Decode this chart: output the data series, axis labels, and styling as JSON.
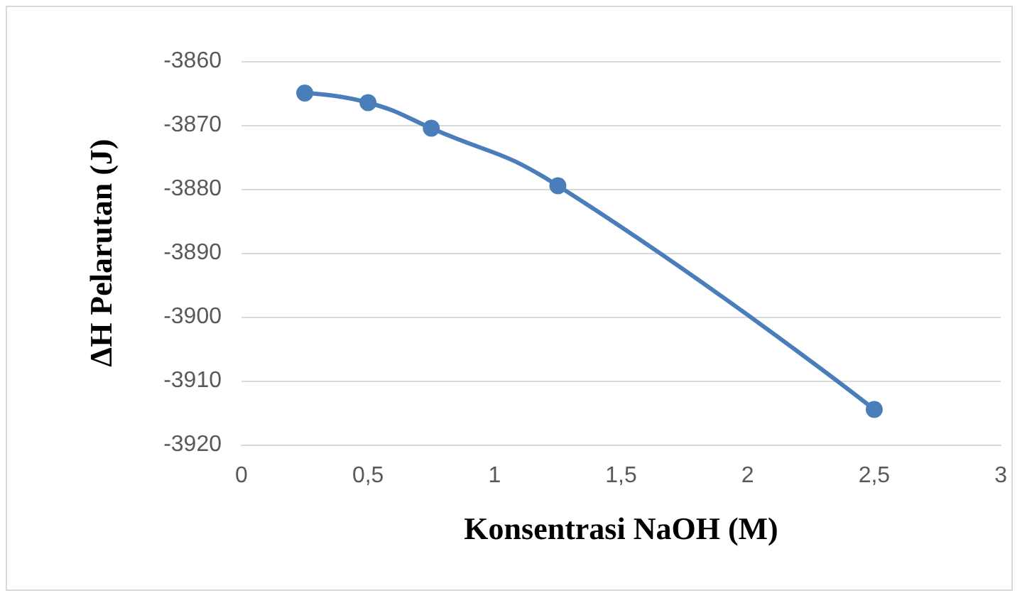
{
  "chart_data": {
    "type": "line",
    "xlabel": "Konsentrasi NaOH (M)",
    "ylabel": "ΔH Pelarutan (J)",
    "x": [
      0.25,
      0.5,
      0.75,
      1.25,
      2.5
    ],
    "series": [
      {
        "color": "#4a7ebb",
        "values": [
          -3865,
          -3866.5,
          -3870.5,
          -3879.5,
          -3914.5
        ]
      }
    ],
    "xlim": [
      0,
      3
    ],
    "xticks": [
      0,
      {
        "value": 0.5,
        "label": "0,5"
      },
      1,
      {
        "value": 1.5,
        "label": "1,5"
      },
      2,
      {
        "value": 2.5,
        "label": "2,5"
      },
      3
    ],
    "ylim": [
      -3920,
      -3860
    ],
    "yticks": [
      -3920,
      -3910,
      -3900,
      -3890,
      -3880,
      -3870,
      -3860
    ],
    "grid": "y",
    "marker": "circle",
    "line_style": "solid"
  }
}
